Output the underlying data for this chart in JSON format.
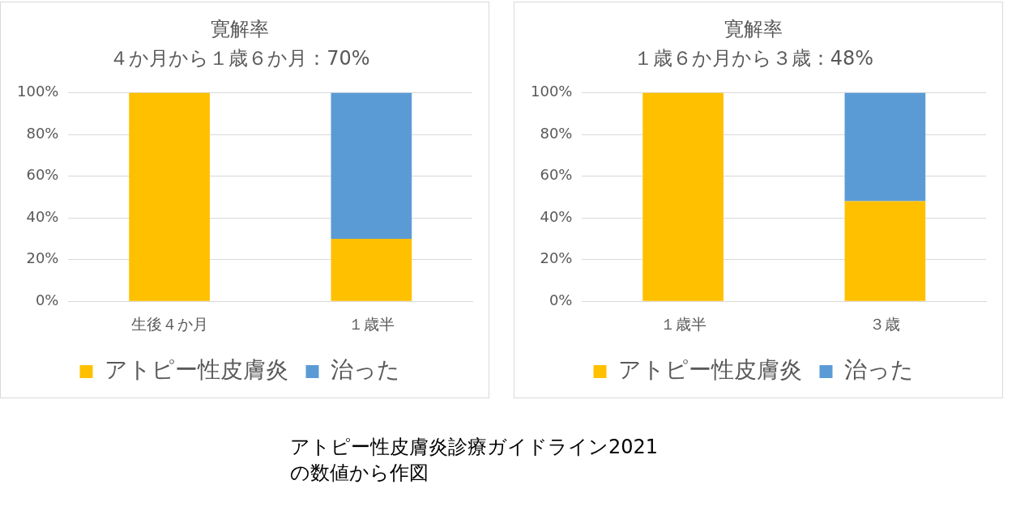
{
  "chart_data": [
    {
      "type": "bar",
      "title": "寛解率",
      "subtitle": "４か月から１歳６か月：70%",
      "categories": [
        "生後４か月",
        "１歳半"
      ],
      "stacked": true,
      "series": [
        {
          "name": "アトピー性皮膚炎",
          "color": "#ffc000",
          "values": [
            100,
            30
          ]
        },
        {
          "name": "治った",
          "color": "#5b9bd5",
          "values": [
            0,
            70
          ]
        }
      ],
      "ylim": [
        0,
        100
      ],
      "yticks": [
        {
          "value": 0,
          "label": "0%"
        },
        {
          "value": 20,
          "label": "20%"
        },
        {
          "value": 40,
          "label": "40%"
        },
        {
          "value": 60,
          "label": "60%"
        },
        {
          "value": 80,
          "label": "80%"
        },
        {
          "value": 100,
          "label": "100%"
        }
      ],
      "grid": "y",
      "legend": "bottom"
    },
    {
      "type": "bar",
      "title": "寛解率",
      "subtitle": "１歳６か月から３歳：48%",
      "categories": [
        "１歳半",
        "３歳"
      ],
      "stacked": true,
      "series": [
        {
          "name": "アトピー性皮膚炎",
          "color": "#ffc000",
          "values": [
            100,
            48
          ]
        },
        {
          "name": "治った",
          "color": "#5b9bd5",
          "values": [
            0,
            52
          ]
        }
      ],
      "ylim": [
        0,
        100
      ],
      "yticks": [
        {
          "value": 0,
          "label": "0%"
        },
        {
          "value": 20,
          "label": "20%"
        },
        {
          "value": 40,
          "label": "40%"
        },
        {
          "value": 60,
          "label": "60%"
        },
        {
          "value": 80,
          "label": "80%"
        },
        {
          "value": 100,
          "label": "100%"
        }
      ],
      "grid": "y",
      "legend": "bottom",
      "annotations": [
        "アトピー性皮膚炎診療ガイドライン2021\nの数値から作図"
      ]
    }
  ]
}
